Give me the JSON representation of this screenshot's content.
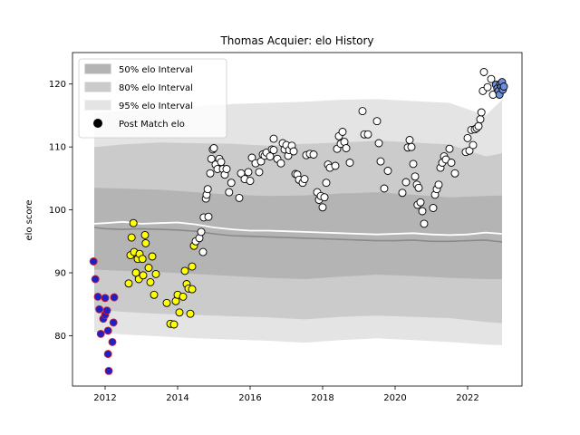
{
  "chart_data": {
    "type": "scatter",
    "title": "Thomas Acquier: elo History",
    "xlabel": "",
    "ylabel": "elo score",
    "xlim": [
      2011.1,
      2023.5
    ],
    "ylim": [
      72,
      125
    ],
    "xticks": [
      2012,
      2014,
      2016,
      2018,
      2020,
      2022
    ],
    "yticks": [
      80,
      90,
      100,
      110,
      120
    ],
    "grid": false,
    "legend_position": "top-left",
    "legend": [
      {
        "label": "50% elo Interval",
        "kind": "band",
        "color": "#b4b4b4"
      },
      {
        "label": "80% elo Interval",
        "kind": "band",
        "color": "#cbcbcb"
      },
      {
        "label": "95% elo Interval",
        "kind": "band",
        "color": "#e4e4e4"
      },
      {
        "label": "Post Match elo",
        "kind": "marker",
        "color": "#000000"
      }
    ],
    "bands": {
      "x": [
        2011.7,
        2012.5,
        2013.5,
        2014.5,
        2015.5,
        2016.5,
        2017.5,
        2018.5,
        2019.5,
        2020.5,
        2021.5,
        2022.5,
        2022.95
      ],
      "p95_upper": [
        115.4,
        115.8,
        116.2,
        116.5,
        116.8,
        117.0,
        117.2,
        117.5,
        117.6,
        117.3,
        117.0,
        115.0,
        117.5
      ],
      "p80_upper": [
        110.0,
        110.4,
        110.7,
        110.6,
        110.5,
        110.2,
        110.5,
        110.7,
        111.0,
        110.7,
        110.4,
        108.5,
        109.0
      ],
      "p50_upper": [
        103.5,
        103.4,
        103.2,
        102.8,
        102.4,
        102.2,
        102.3,
        102.6,
        102.8,
        102.4,
        102.0,
        102.2,
        102.3
      ],
      "p50_lower": [
        90.5,
        90.3,
        90.1,
        89.8,
        89.5,
        89.2,
        89.0,
        89.4,
        89.7,
        89.5,
        89.2,
        89.0,
        89.0
      ],
      "p80_lower": [
        84.2,
        83.8,
        83.5,
        83.3,
        83.1,
        82.9,
        82.6,
        83.0,
        83.2,
        83.0,
        82.8,
        82.2,
        82.0
      ],
      "p95_lower": [
        80.6,
        80.2,
        79.9,
        79.6,
        79.4,
        79.2,
        78.9,
        79.3,
        79.6,
        79.3,
        79.0,
        78.6,
        78.5
      ]
    },
    "lines": {
      "x": [
        2011.7,
        2012.0,
        2012.5,
        2013.0,
        2013.5,
        2014.0,
        2014.5,
        2015.0,
        2015.5,
        2016.0,
        2016.5,
        2017.0,
        2017.5,
        2018.0,
        2018.5,
        2019.0,
        2019.5,
        2020.0,
        2020.5,
        2021.0,
        2021.5,
        2022.0,
        2022.5,
        2022.95
      ],
      "median": [
        97.2,
        97.0,
        96.9,
        97.0,
        96.9,
        96.8,
        96.6,
        96.2,
        95.9,
        95.8,
        95.7,
        95.6,
        95.5,
        95.4,
        95.3,
        95.2,
        95.1,
        95.1,
        95.2,
        95.0,
        95.0,
        95.1,
        95.2,
        94.9
      ],
      "mean": [
        97.8,
        97.9,
        98.1,
        97.8,
        97.9,
        98.0,
        97.7,
        97.2,
        96.9,
        96.7,
        96.7,
        96.6,
        96.5,
        96.4,
        96.3,
        96.2,
        96.1,
        96.2,
        96.3,
        96.1,
        96.0,
        96.1,
        96.4,
        96.2
      ]
    },
    "series": [
      {
        "face_color": "#1f1fcc",
        "edge_color": "#cc2020",
        "points": [
          [
            2011.68,
            91.8
          ],
          [
            2011.73,
            89.0
          ],
          [
            2011.8,
            86.2
          ],
          [
            2011.84,
            84.2
          ],
          [
            2011.88,
            80.3
          ],
          [
            2011.95,
            82.7
          ],
          [
            2012.0,
            83.3
          ],
          [
            2012.0,
            86.0
          ],
          [
            2012.05,
            84.0
          ],
          [
            2012.08,
            80.8
          ],
          [
            2012.08,
            77.1
          ],
          [
            2012.1,
            74.4
          ],
          [
            2012.2,
            79.0
          ],
          [
            2012.23,
            82.1
          ],
          [
            2012.25,
            86.1
          ]
        ]
      },
      {
        "face_color": "#ffff00",
        "edge_color": "#000000",
        "points": [
          [
            2012.65,
            88.3
          ],
          [
            2012.7,
            92.8
          ],
          [
            2012.73,
            95.6
          ],
          [
            2012.78,
            97.9
          ],
          [
            2012.8,
            93.3
          ],
          [
            2012.85,
            90.0
          ],
          [
            2012.9,
            92.2
          ],
          [
            2012.93,
            89.0
          ],
          [
            2012.95,
            93.0
          ],
          [
            2013.03,
            92.2
          ],
          [
            2013.05,
            89.6
          ],
          [
            2013.1,
            96.0
          ],
          [
            2013.12,
            94.7
          ],
          [
            2013.2,
            90.8
          ],
          [
            2013.25,
            88.5
          ],
          [
            2013.3,
            92.6
          ],
          [
            2013.35,
            86.5
          ],
          [
            2013.4,
            89.8
          ],
          [
            2013.7,
            85.2
          ],
          [
            2013.8,
            81.9
          ],
          [
            2013.9,
            81.8
          ],
          [
            2013.95,
            85.5
          ],
          [
            2014.0,
            86.5
          ],
          [
            2014.05,
            83.7
          ],
          [
            2014.15,
            86.2
          ],
          [
            2014.2,
            90.3
          ],
          [
            2014.25,
            88.2
          ],
          [
            2014.3,
            87.5
          ],
          [
            2014.35,
            83.5
          ],
          [
            2014.4,
            87.4
          ],
          [
            2014.4,
            91.0
          ],
          [
            2014.45,
            94.3
          ]
        ]
      },
      {
        "face_color": "#ffffff",
        "edge_color": "#000000",
        "points": [
          [
            2014.5,
            95.0
          ],
          [
            2014.6,
            95.5
          ],
          [
            2014.65,
            96.5
          ],
          [
            2014.7,
            93.3
          ],
          [
            2014.72,
            98.8
          ],
          [
            2014.78,
            101.8
          ],
          [
            2014.8,
            102.4
          ],
          [
            2014.83,
            103.3
          ],
          [
            2014.85,
            98.9
          ],
          [
            2014.9,
            105.8
          ],
          [
            2014.93,
            108.1
          ],
          [
            2014.97,
            109.6
          ],
          [
            2015.0,
            109.8
          ],
          [
            2015.05,
            107.2
          ],
          [
            2015.1,
            106.5
          ],
          [
            2015.15,
            108.1
          ],
          [
            2015.2,
            107.6
          ],
          [
            2015.25,
            106.5
          ],
          [
            2015.3,
            105.6
          ],
          [
            2015.35,
            106.5
          ],
          [
            2015.42,
            102.8
          ],
          [
            2015.48,
            104.3
          ],
          [
            2015.7,
            101.9
          ],
          [
            2015.75,
            105.8
          ],
          [
            2015.85,
            104.9
          ],
          [
            2015.95,
            106.0
          ],
          [
            2016.0,
            104.6
          ],
          [
            2016.05,
            108.3
          ],
          [
            2016.15,
            107.4
          ],
          [
            2016.25,
            106.0
          ],
          [
            2016.3,
            107.7
          ],
          [
            2016.35,
            108.8
          ],
          [
            2016.4,
            108.6
          ],
          [
            2016.45,
            109.1
          ],
          [
            2016.55,
            108.5
          ],
          [
            2016.6,
            109.6
          ],
          [
            2016.65,
            109.5
          ],
          [
            2016.65,
            111.3
          ],
          [
            2016.75,
            108.1
          ],
          [
            2016.85,
            107.4
          ],
          [
            2016.9,
            110.6
          ],
          [
            2016.95,
            109.6
          ],
          [
            2017.0,
            110.3
          ],
          [
            2017.05,
            108.6
          ],
          [
            2017.08,
            109.5
          ],
          [
            2017.15,
            110.2
          ],
          [
            2017.2,
            109.3
          ],
          [
            2017.25,
            105.7
          ],
          [
            2017.3,
            105.6
          ],
          [
            2017.35,
            104.8
          ],
          [
            2017.45,
            104.3
          ],
          [
            2017.5,
            104.9
          ],
          [
            2017.55,
            108.7
          ],
          [
            2017.65,
            108.9
          ],
          [
            2017.75,
            108.8
          ],
          [
            2017.85,
            102.8
          ],
          [
            2017.9,
            101.6
          ],
          [
            2017.95,
            102.2
          ],
          [
            2018.0,
            100.4
          ],
          [
            2018.05,
            102.0
          ],
          [
            2018.1,
            104.3
          ],
          [
            2018.15,
            107.2
          ],
          [
            2018.2,
            106.7
          ],
          [
            2018.35,
            107.0
          ],
          [
            2018.4,
            109.7
          ],
          [
            2018.45,
            111.7
          ],
          [
            2018.5,
            110.5
          ],
          [
            2018.55,
            112.4
          ],
          [
            2018.6,
            110.8
          ],
          [
            2018.65,
            109.8
          ],
          [
            2018.75,
            107.5
          ],
          [
            2019.1,
            115.7
          ],
          [
            2019.15,
            112.0
          ],
          [
            2019.25,
            112.0
          ],
          [
            2019.5,
            114.1
          ],
          [
            2019.55,
            110.6
          ],
          [
            2019.6,
            107.7
          ],
          [
            2019.7,
            103.4
          ],
          [
            2019.8,
            106.2
          ],
          [
            2020.2,
            102.7
          ],
          [
            2020.3,
            104.4
          ],
          [
            2020.35,
            109.9
          ],
          [
            2020.4,
            111.1
          ],
          [
            2020.45,
            110.0
          ],
          [
            2020.5,
            107.3
          ],
          [
            2020.55,
            105.3
          ],
          [
            2020.6,
            104.0
          ],
          [
            2020.62,
            100.8
          ],
          [
            2020.65,
            103.5
          ],
          [
            2020.7,
            101.2
          ],
          [
            2020.75,
            99.8
          ],
          [
            2020.8,
            97.8
          ],
          [
            2021.05,
            100.3
          ],
          [
            2021.1,
            102.4
          ],
          [
            2021.15,
            103.3
          ],
          [
            2021.2,
            104.0
          ],
          [
            2021.25,
            106.7
          ],
          [
            2021.3,
            107.5
          ],
          [
            2021.35,
            108.5
          ],
          [
            2021.4,
            108.0
          ],
          [
            2021.5,
            109.7
          ],
          [
            2021.55,
            107.5
          ],
          [
            2021.65,
            105.8
          ],
          [
            2021.95,
            109.2
          ],
          [
            2022.0,
            111.4
          ],
          [
            2022.05,
            109.4
          ],
          [
            2022.1,
            112.7
          ],
          [
            2022.15,
            110.3
          ],
          [
            2022.2,
            112.8
          ],
          [
            2022.25,
            113.0
          ],
          [
            2022.3,
            113.3
          ],
          [
            2022.35,
            114.4
          ],
          [
            2022.38,
            115.5
          ],
          [
            2022.42,
            118.9
          ],
          [
            2022.45,
            121.9
          ],
          [
            2022.55,
            119.5
          ],
          [
            2022.65,
            120.8
          ],
          [
            2022.7,
            118.3
          ]
        ]
      },
      {
        "face_color": "#6f8fd8",
        "edge_color": "#000000",
        "points": [
          [
            2022.78,
            119.9
          ],
          [
            2022.82,
            119.3
          ],
          [
            2022.85,
            118.9
          ],
          [
            2022.88,
            118.3
          ],
          [
            2022.9,
            120.0
          ],
          [
            2022.93,
            119.6
          ],
          [
            2022.95,
            120.3
          ],
          [
            2022.97,
            119.1
          ],
          [
            2023.0,
            119.6
          ]
        ]
      }
    ]
  }
}
